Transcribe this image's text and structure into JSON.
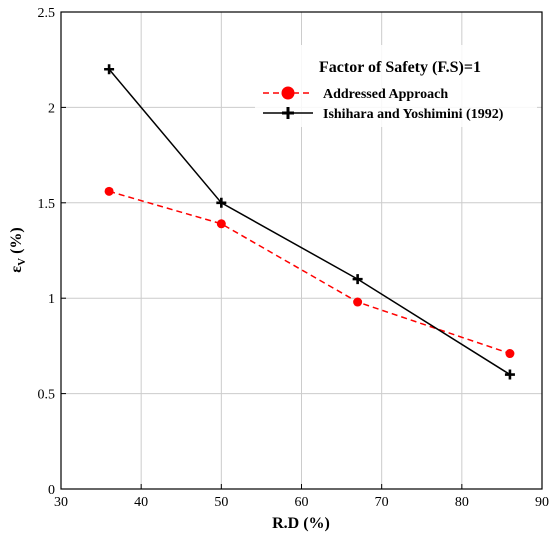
{
  "chart_data": {
    "type": "line",
    "xlabel": "R.D (%)",
    "ylabel_main": "ε",
    "ylabel_sub": "V",
    "ylabel_unit": " (%)",
    "xlim": [
      30,
      90
    ],
    "ylim": [
      0,
      2.5
    ],
    "xticks": [
      30,
      40,
      50,
      60,
      70,
      80,
      90
    ],
    "yticks": [
      0,
      0.5,
      1,
      1.5,
      2,
      2.5
    ],
    "xtick_labels": [
      "30",
      "40",
      "50",
      "60",
      "70",
      "80",
      "90"
    ],
    "ytick_labels": [
      "0",
      "0.5",
      "1",
      "1.5",
      "2",
      "2.5"
    ],
    "grid": true,
    "legend": {
      "title": "Factor of Safety (F.S)=1",
      "position": "top-right"
    },
    "series": [
      {
        "name": "Addressed Approach",
        "x": [
          36,
          50,
          67,
          86
        ],
        "y": [
          1.56,
          1.39,
          0.98,
          0.71
        ],
        "color": "#ff0000",
        "line_style": "dashed",
        "marker": "circle"
      },
      {
        "name": "Ishihara and Yoshimini (1992)",
        "x": [
          36,
          50,
          67,
          86
        ],
        "y": [
          2.2,
          1.5,
          1.1,
          0.6
        ],
        "color": "#000000",
        "line_style": "solid",
        "marker": "plus"
      }
    ]
  }
}
